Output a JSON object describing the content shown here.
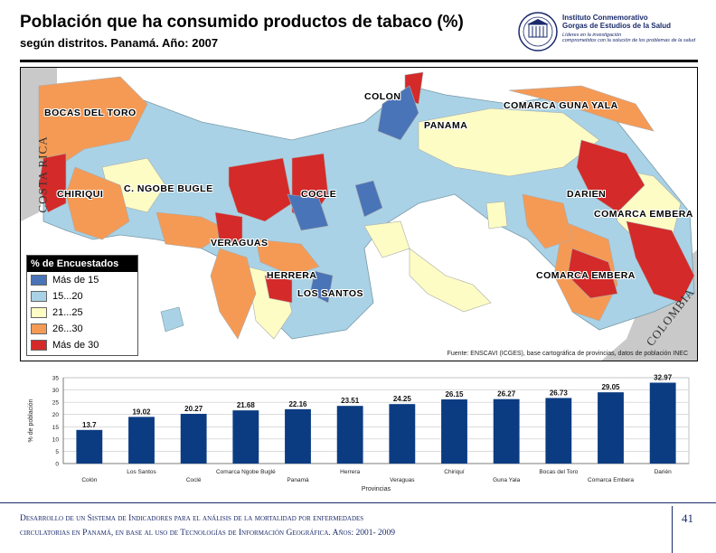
{
  "header": {
    "title": "Población que ha consumido productos de tabaco (%)",
    "subtitle": "según distritos. Panamá. Año: 2007"
  },
  "logo": {
    "line1": "Instituto Conmemorativo",
    "line2": "Gorgas de Estudios de la Salud",
    "line3": "Líderes en la investigación",
    "line4": "comprometidos con la solución de los problemas de la salud",
    "seal_year": "1928"
  },
  "map": {
    "country_labels": [
      "COSTA RICA",
      "COLOMBIA"
    ],
    "region_labels": [
      "COLON",
      "BOCAS DEL TORO",
      "COMARCA GUNA YALA",
      "PANAMA",
      "CHIRIQUI",
      "C. NGOBE BUGLE",
      "COCLE",
      "DARIEN",
      "COMARCA EMBERA",
      "VERAGUAS",
      "HERRERA",
      "LOS SANTOS",
      "COMARCA EMBERA"
    ],
    "legend": {
      "title": "% de Encuestados",
      "items": [
        {
          "label": "Más de 15",
          "color": "#4a74b8"
        },
        {
          "label": "15...20",
          "color": "#a9d2e6"
        },
        {
          "label": "21...25",
          "color": "#fcfcc4"
        },
        {
          "label": "26...30",
          "color": "#f59a55"
        },
        {
          "label": "Más de 30",
          "color": "#d42a2a"
        }
      ]
    },
    "source": "Fuente: ENSCAVI (ICGES), base cartográfica de provincias, datos de población INEC"
  },
  "chart_data": {
    "type": "bar",
    "categories": [
      "Colón",
      "Los Santos",
      "Coclé",
      "Comarca Ngobe Buglé",
      "Panamá",
      "Herrera",
      "Veraguas",
      "Chiriquí",
      "Guna Yala",
      "Bocas del Toro",
      "Comarca Embera",
      "Darién"
    ],
    "values": [
      13.7,
      19.02,
      20.27,
      21.68,
      22.16,
      23.51,
      24.25,
      26.15,
      26.27,
      26.73,
      29.05,
      32.97
    ],
    "value_labels": [
      "13.7",
      "19.02",
      "20.27",
      "21.68",
      "22.16",
      "23.51",
      "24.25",
      "26.15",
      "26.27",
      "26.73",
      "29.05",
      "32.97"
    ],
    "xlabel": "Provincias",
    "ylabel": "% de población",
    "ylim": [
      0,
      35
    ],
    "yticks": [
      "0",
      "5",
      "10",
      "15",
      "20",
      "25",
      "30",
      "35"
    ],
    "grid": true,
    "bar_color": "#0b3c82"
  },
  "footer": {
    "line1": "Desarrollo de un Sistema de Indicadores para el análisis de la mortalidad por enfermedades",
    "line2": "circulatorias en Panamá, en base al uso de Tecnologías de Información Geográfica. Años: 2001- 2009",
    "page_number": "41"
  }
}
